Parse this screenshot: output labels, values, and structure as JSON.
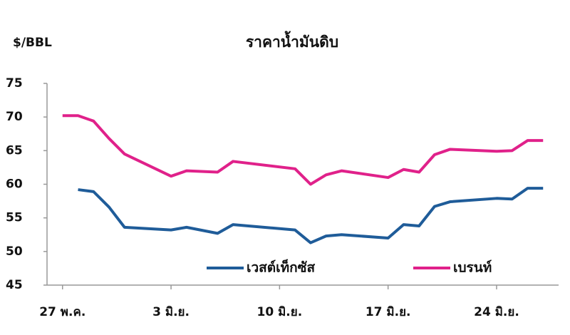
{
  "chart_data": {
    "type": "line",
    "title": "ราคาน้ำมันดิบ",
    "y_label": "$/BBL",
    "x": [
      0,
      1,
      2,
      3,
      4,
      7,
      8,
      10,
      11,
      15,
      16,
      17,
      18,
      21,
      22,
      23,
      24,
      25,
      28,
      29,
      30,
      31
    ],
    "series": [
      {
        "name": "เวสต์เท็กซัส",
        "color": "#1f5c99",
        "values": [
          null,
          59.2,
          58.9,
          56.6,
          53.6,
          53.2,
          53.6,
          52.7,
          54.0,
          53.2,
          51.3,
          52.3,
          52.5,
          52.0,
          54.0,
          53.8,
          56.7,
          57.4,
          57.9,
          57.8,
          59.4,
          59.4
        ]
      },
      {
        "name": "เบรนท์",
        "color": "#e0218a",
        "values": [
          70.2,
          70.2,
          69.4,
          66.8,
          64.5,
          61.2,
          62.0,
          61.8,
          63.4,
          62.3,
          60.0,
          61.4,
          62.0,
          61.0,
          62.2,
          61.8,
          64.4,
          65.2,
          64.9,
          65.0,
          66.5,
          66.5
        ]
      }
    ],
    "xlim": [
      -1,
      32
    ],
    "xticks": [
      {
        "value": 0,
        "label": "27 พ.ค."
      },
      {
        "value": 7,
        "label": "3 มิ.ย."
      },
      {
        "value": 14,
        "label": "10 มิ.ย."
      },
      {
        "value": 21,
        "label": "17 มิ.ย."
      },
      {
        "value": 28,
        "label": "24 มิ.ย."
      }
    ],
    "ylim": [
      45,
      75
    ],
    "yticks": [
      45,
      50,
      55,
      60,
      65,
      70,
      75
    ],
    "grid": false,
    "legend": "lower"
  }
}
